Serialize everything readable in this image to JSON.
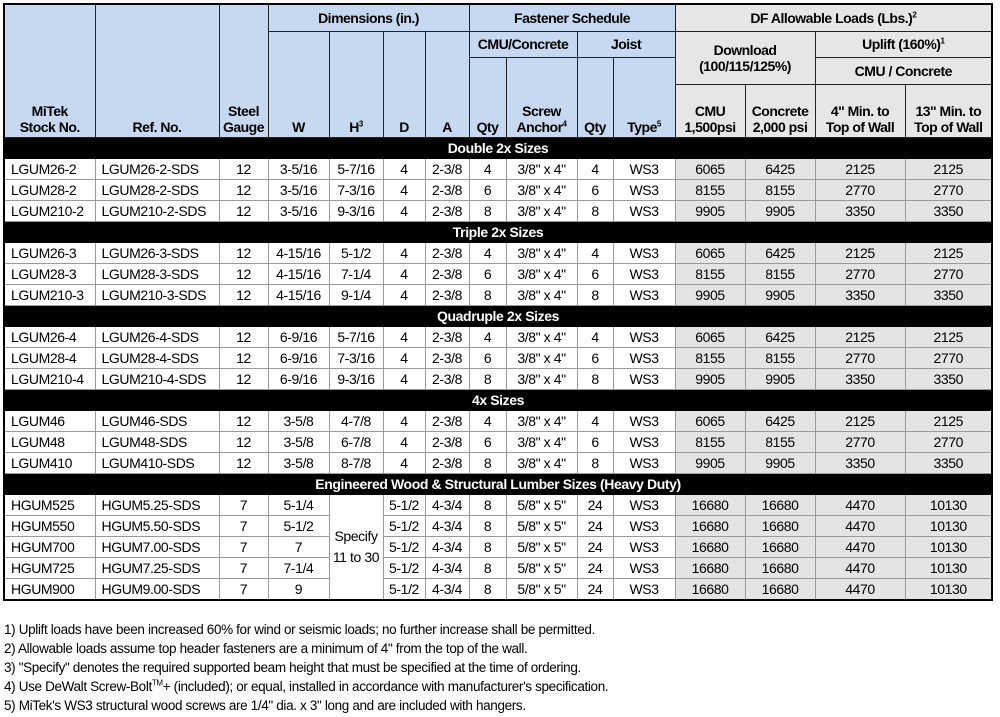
{
  "header": {
    "stock_no": [
      "MiTek",
      "Stock No."
    ],
    "ref_no": "Ref. No.",
    "gauge": [
      "Steel",
      "Gauge"
    ],
    "dimensions": "Dimensions (in.)",
    "w": "W",
    "h": "H",
    "h_sup": "3",
    "d": "D",
    "a": "A",
    "fastener_schedule": "Fastener Schedule",
    "cmu_concrete": "CMU/Concrete",
    "joist": "Joist",
    "qty": "Qty",
    "screw_anchor": [
      "Screw",
      "Anchor"
    ],
    "screw_anchor_sup": "4",
    "joist_qty": "Qty",
    "type": "Type",
    "type_sup": "5",
    "df_loads": "DF Allowable Loads (Lbs.)",
    "df_loads_sup": "2",
    "download": [
      "Download",
      "(100/115/125%)"
    ],
    "uplift": "Uplift (160%)",
    "uplift_sup": "1",
    "uplift_sub": "CMU / Concrete",
    "cmu": [
      "CMU",
      "1,500psi"
    ],
    "concrete": [
      "Concrete",
      "2,000 psi"
    ],
    "min4": [
      "4\" Min. to",
      "Top of Wall"
    ],
    "min13": [
      "13\" Min. to",
      "Top of Wall"
    ]
  },
  "sections": [
    {
      "title": "Double 2x Sizes",
      "rows": [
        [
          "LGUM26-2",
          "LGUM26-2-SDS",
          "12",
          "3-5/16",
          "5-7/16",
          "4",
          "2-3/8",
          "4",
          "3/8\" x 4\"",
          "4",
          "WS3",
          "6065",
          "6425",
          "2125",
          "2125"
        ],
        [
          "LGUM28-2",
          "LGUM28-2-SDS",
          "12",
          "3-5/16",
          "7-3/16",
          "4",
          "2-3/8",
          "6",
          "3/8\" x 4\"",
          "6",
          "WS3",
          "8155",
          "8155",
          "2770",
          "2770"
        ],
        [
          "LGUM210-2",
          "LGUM210-2-SDS",
          "12",
          "3-5/16",
          "9-3/16",
          "4",
          "2-3/8",
          "8",
          "3/8\" x 4\"",
          "8",
          "WS3",
          "9905",
          "9905",
          "3350",
          "3350"
        ]
      ]
    },
    {
      "title": "Triple 2x Sizes",
      "rows": [
        [
          "LGUM26-3",
          "LGUM26-3-SDS",
          "12",
          "4-15/16",
          "5-1/2",
          "4",
          "2-3/8",
          "4",
          "3/8\" x 4\"",
          "4",
          "WS3",
          "6065",
          "6425",
          "2125",
          "2125"
        ],
        [
          "LGUM28-3",
          "LGUM28-3-SDS",
          "12",
          "4-15/16",
          "7-1/4",
          "4",
          "2-3/8",
          "6",
          "3/8\" x 4\"",
          "6",
          "WS3",
          "8155",
          "8155",
          "2770",
          "2770"
        ],
        [
          "LGUM210-3",
          "LGUM210-3-SDS",
          "12",
          "4-15/16",
          "9-1/4",
          "4",
          "2-3/8",
          "8",
          "3/8\" x 4\"",
          "8",
          "WS3",
          "9905",
          "9905",
          "3350",
          "3350"
        ]
      ]
    },
    {
      "title": "Quadruple 2x Sizes",
      "rows": [
        [
          "LGUM26-4",
          "LGUM26-4-SDS",
          "12",
          "6-9/16",
          "5-7/16",
          "4",
          "2-3/8",
          "4",
          "3/8\" x 4\"",
          "4",
          "WS3",
          "6065",
          "6425",
          "2125",
          "2125"
        ],
        [
          "LGUM28-4",
          "LGUM28-4-SDS",
          "12",
          "6-9/16",
          "7-3/16",
          "4",
          "2-3/8",
          "6",
          "3/8\" x 4\"",
          "6",
          "WS3",
          "8155",
          "8155",
          "2770",
          "2770"
        ],
        [
          "LGUM210-4",
          "LGUM210-4-SDS",
          "12",
          "6-9/16",
          "9-3/16",
          "4",
          "2-3/8",
          "8",
          "3/8\" x 4\"",
          "8",
          "WS3",
          "9905",
          "9905",
          "3350",
          "3350"
        ]
      ]
    },
    {
      "title": "4x Sizes",
      "rows": [
        [
          "LGUM46",
          "LGUM46-SDS",
          "12",
          "3-5/8",
          "4-7/8",
          "4",
          "2-3/8",
          "4",
          "3/8\" x 4\"",
          "4",
          "WS3",
          "6065",
          "6425",
          "2125",
          "2125"
        ],
        [
          "LGUM48",
          "LGUM48-SDS",
          "12",
          "3-5/8",
          "6-7/8",
          "4",
          "2-3/8",
          "6",
          "3/8\" x 4\"",
          "6",
          "WS3",
          "8155",
          "8155",
          "2770",
          "2770"
        ],
        [
          "LGUM410",
          "LGUM410-SDS",
          "12",
          "3-5/8",
          "8-7/8",
          "4",
          "2-3/8",
          "8",
          "3/8\" x 4\"",
          "8",
          "WS3",
          "9905",
          "9905",
          "3350",
          "3350"
        ]
      ]
    },
    {
      "title": "Engineered Wood & Structural Lumber Sizes (Heavy Duty)",
      "h_merged": "Specify 11 to 30",
      "rows": [
        [
          "HGUM525",
          "HGUM5.25-SDS",
          "7",
          "5-1/4",
          null,
          "5-1/2",
          "4-3/4",
          "8",
          "5/8\" x 5\"",
          "24",
          "WS3",
          "16680",
          "16680",
          "4470",
          "10130"
        ],
        [
          "HGUM550",
          "HGUM5.50-SDS",
          "7",
          "5-1/2",
          null,
          "5-1/2",
          "4-3/4",
          "8",
          "5/8\" x 5\"",
          "24",
          "WS3",
          "16680",
          "16680",
          "4470",
          "10130"
        ],
        [
          "HGUM700",
          "HGUM7.00-SDS",
          "7",
          "7",
          null,
          "5-1/2",
          "4-3/4",
          "8",
          "5/8\" x 5\"",
          "24",
          "WS3",
          "16680",
          "16680",
          "4470",
          "10130"
        ],
        [
          "HGUM725",
          "HGUM7.25-SDS",
          "7",
          "7-1/4",
          null,
          "5-1/2",
          "4-3/4",
          "8",
          "5/8\" x 5\"",
          "24",
          "WS3",
          "16680",
          "16680",
          "4470",
          "10130"
        ],
        [
          "HGUM900",
          "HGUM9.00-SDS",
          "7",
          "9",
          null,
          "5-1/2",
          "4-3/4",
          "8",
          "5/8\" x 5\"",
          "24",
          "WS3",
          "16680",
          "16680",
          "4470",
          "10130"
        ]
      ]
    }
  ],
  "footnotes": {
    "n1": "1) Uplift loads have been increased 60% for wind or seismic loads; no further increase shall be permitted.",
    "n2": "2) Allowable loads assume top header fasteners are a minimum of 4\" from the top of the wall.",
    "n3": "3) \"Specify\" denotes the required supported beam height that must be specified at the time of ordering.",
    "n4_a": "4) Use DeWalt Screw-Bolt",
    "n4_sup": "TM",
    "n4_b": "+ (included); or equal, installed in accordance with manufacturer's specification.",
    "n5": "5) MiTek's WS3 structural wood screws are 1/4\" dia. x 3\" long and are included with hangers."
  }
}
